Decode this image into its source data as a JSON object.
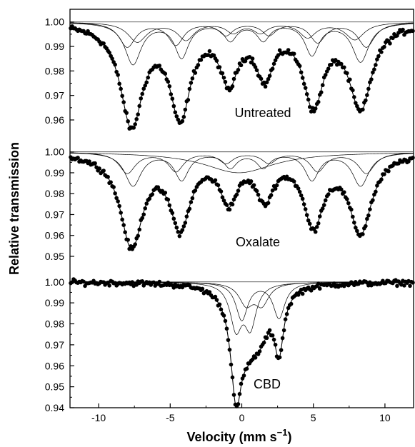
{
  "chart_data": {
    "type": "scatter",
    "xlabel_main": "Velocity (mm s",
    "xlabel_sup": "−1",
    "xlabel_close": ")",
    "ylabel": "Relative transmission",
    "xlim": [
      -12,
      12
    ],
    "x_ticks": [
      -10,
      -5,
      0,
      5,
      10
    ],
    "x_tick_labels": [
      "-10",
      "-5",
      "0",
      "5",
      "10"
    ],
    "panels": [
      {
        "name": "Untreated",
        "ylim": [
          0.953,
          1.004
        ],
        "y_ticks": [
          1.0,
          0.99,
          0.98,
          0.97,
          0.96
        ],
        "y_tick_labels": [
          "1.00",
          "0.99",
          "0.98",
          "0.97",
          "0.96"
        ],
        "peaks": [
          {
            "position": -7.7,
            "depth": 0.041,
            "width": 0.95
          },
          {
            "position": -4.3,
            "depth": 0.037,
            "width": 0.85
          },
          {
            "position": -0.9,
            "depth": 0.022,
            "width": 0.75
          },
          {
            "position": 1.6,
            "depth": 0.02,
            "width": 0.75
          },
          {
            "position": 5.0,
            "depth": 0.032,
            "width": 0.85
          },
          {
            "position": 8.3,
            "depth": 0.034,
            "width": 0.95
          }
        ],
        "subspectra": [
          [
            {
              "position": -7.6,
              "depth": 0.017,
              "width": 0.7
            },
            {
              "position": -4.2,
              "depth": 0.014,
              "width": 0.6
            },
            {
              "position": -0.8,
              "depth": 0.007,
              "width": 0.55
            },
            {
              "position": 1.5,
              "depth": 0.007,
              "width": 0.55
            },
            {
              "position": 4.9,
              "depth": 0.013,
              "width": 0.6
            },
            {
              "position": 8.3,
              "depth": 0.016,
              "width": 0.7
            }
          ],
          [
            {
              "position": -8.0,
              "depth": 0.01,
              "width": 0.7
            },
            {
              "position": -4.6,
              "depth": 0.009,
              "width": 0.65
            },
            {
              "position": -1.1,
              "depth": 0.005,
              "width": 0.6
            },
            {
              "position": 1.9,
              "depth": 0.005,
              "width": 0.6
            },
            {
              "position": 5.3,
              "depth": 0.008,
              "width": 0.65
            },
            {
              "position": 8.7,
              "depth": 0.01,
              "width": 0.7
            }
          ],
          [
            {
              "position": -7.3,
              "depth": 0.008,
              "width": 0.8
            },
            {
              "position": -3.9,
              "depth": 0.007,
              "width": 0.7
            },
            {
              "position": -0.6,
              "depth": 0.004,
              "width": 0.6
            },
            {
              "position": 1.3,
              "depth": 0.004,
              "width": 0.6
            },
            {
              "position": 4.6,
              "depth": 0.006,
              "width": 0.7
            },
            {
              "position": 7.9,
              "depth": 0.007,
              "width": 0.8
            }
          ]
        ]
      },
      {
        "name": "Oxalate",
        "ylim": [
          0.9435,
          1.004
        ],
        "y_ticks": [
          1.0,
          0.99,
          0.98,
          0.97,
          0.96,
          0.95
        ],
        "y_tick_labels": [
          "1.00",
          "0.99",
          "0.98",
          "0.97",
          "0.96",
          "0.95"
        ],
        "peaks": [
          {
            "position": -7.7,
            "depth": 0.044,
            "width": 0.95
          },
          {
            "position": -4.3,
            "depth": 0.034,
            "width": 0.85
          },
          {
            "position": -0.9,
            "depth": 0.021,
            "width": 0.75
          },
          {
            "position": 1.6,
            "depth": 0.02,
            "width": 0.75
          },
          {
            "position": 5.0,
            "depth": 0.033,
            "width": 0.85
          },
          {
            "position": 8.3,
            "depth": 0.037,
            "width": 0.95
          }
        ],
        "subspectra": [
          [
            {
              "position": -7.6,
              "depth": 0.016,
              "width": 0.7
            },
            {
              "position": -4.2,
              "depth": 0.013,
              "width": 0.6
            },
            {
              "position": -0.8,
              "depth": 0.007,
              "width": 0.55
            },
            {
              "position": 1.5,
              "depth": 0.007,
              "width": 0.55
            },
            {
              "position": 4.9,
              "depth": 0.013,
              "width": 0.6
            },
            {
              "position": 8.3,
              "depth": 0.016,
              "width": 0.7
            }
          ],
          [
            {
              "position": -8.0,
              "depth": 0.01,
              "width": 0.7
            },
            {
              "position": -4.6,
              "depth": 0.009,
              "width": 0.65
            },
            {
              "position": -1.1,
              "depth": 0.005,
              "width": 0.6
            },
            {
              "position": 1.9,
              "depth": 0.005,
              "width": 0.6
            },
            {
              "position": 5.3,
              "depth": 0.009,
              "width": 0.65
            },
            {
              "position": 8.7,
              "depth": 0.01,
              "width": 0.7
            }
          ],
          [
            {
              "position": -0.2,
              "depth": 0.01,
              "width": 3.0
            }
          ]
        ]
      },
      {
        "name": "CBD",
        "ylim": [
          0.94,
          1.004
        ],
        "y_ticks": [
          1.0,
          0.99,
          0.98,
          0.97,
          0.96,
          0.95,
          0.94
        ],
        "y_tick_labels": [
          "1.00",
          "0.99",
          "0.98",
          "0.97",
          "0.96",
          "0.95",
          "0.94"
        ],
        "peaks": [
          {
            "position": -0.4,
            "depth": 0.044,
            "width": 0.45
          },
          {
            "position": 0.4,
            "depth": 0.022,
            "width": 0.9
          },
          {
            "position": 1.3,
            "depth": 0.016,
            "width": 0.8
          },
          {
            "position": 2.6,
            "depth": 0.028,
            "width": 0.4
          }
        ],
        "subspectra": [
          [
            {
              "position": -0.4,
              "depth": 0.021,
              "width": 0.5
            },
            {
              "position": 0.6,
              "depth": 0.02,
              "width": 0.5
            }
          ],
          [
            {
              "position": 0.0,
              "depth": 0.018,
              "width": 0.5
            },
            {
              "position": 2.6,
              "depth": 0.017,
              "width": 0.5
            }
          ],
          [
            {
              "position": 0.3,
              "depth": 0.01,
              "width": 0.6
            },
            {
              "position": 1.4,
              "depth": 0.01,
              "width": 0.6
            }
          ]
        ]
      }
    ]
  }
}
